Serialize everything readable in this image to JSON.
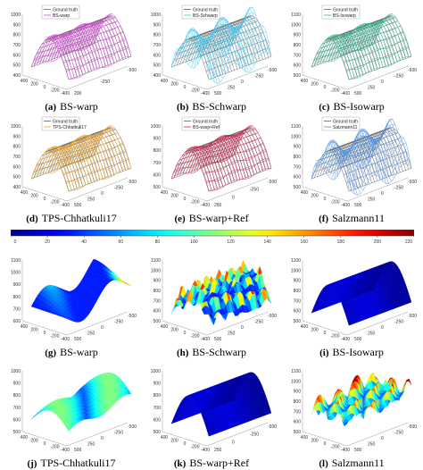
{
  "top_panels": [
    {
      "id": "a",
      "label": "(a)",
      "title": "BS-warp",
      "legend": [
        "Ground truth",
        "BS-warp"
      ],
      "color": "#e040e0",
      "zticks": [
        "1000",
        "900",
        "800",
        "700",
        "600",
        "500",
        "400"
      ],
      "xticks": [
        "400",
        "200",
        "0",
        "-200",
        "-400"
      ],
      "yticks": [
        "200",
        "-250",
        "-500"
      ]
    },
    {
      "id": "b",
      "label": "(b)",
      "title": "BS-Schwarp",
      "legend": [
        "Ground truth",
        "BS-Schwarp"
      ],
      "color": "#3cc8f0",
      "zticks": [
        "1000",
        "900",
        "800",
        "700",
        "600",
        "500",
        "400"
      ],
      "xticks": [
        "400",
        "200",
        "0",
        "-200",
        "-400"
      ],
      "yticks": [
        "500",
        "250",
        "0",
        "-250",
        "-500"
      ]
    },
    {
      "id": "c",
      "label": "(c)",
      "title": "BS-Isowarp",
      "legend": [
        "Ground truth",
        "BS-Isowarp"
      ],
      "color": "#2ab890",
      "zticks": [
        "1100",
        "1000",
        "900",
        "800",
        "700",
        "600",
        "500"
      ],
      "xticks": [
        "400",
        "200",
        "0",
        "-200",
        "-400"
      ],
      "yticks": [
        "500",
        "250",
        "0",
        "-250",
        "-500"
      ]
    },
    {
      "id": "d",
      "label": "(d)",
      "title": "TPS-Chhatkuli17",
      "legend": [
        "Ground truth",
        "TPS-Chhatkuli17"
      ],
      "color": "#f0a020",
      "zticks": [
        "1000",
        "900",
        "800",
        "700",
        "600",
        "500",
        "400"
      ],
      "xticks": [
        "400",
        "200",
        "0",
        "-200",
        "-400"
      ],
      "yticks": [
        "500",
        "250",
        "0",
        "-250",
        "-500"
      ]
    },
    {
      "id": "e",
      "label": "(e)",
      "title": "BS-warp+Ref",
      "legend": [
        "Ground truth",
        "BS-warp+Ref"
      ],
      "color": "#d02050",
      "zticks": [
        "1000",
        "900",
        "800",
        "700",
        "600",
        "500"
      ],
      "xticks": [
        "400",
        "200",
        "0",
        "-200",
        "-400"
      ],
      "yticks": [
        "250",
        "0",
        "-250",
        "-500"
      ]
    },
    {
      "id": "f",
      "label": "(f)",
      "title": "Salzmann11",
      "legend": [
        "Ground truth",
        "Salzmann11"
      ],
      "color": "#4a90e8",
      "zticks": [
        "1100",
        "1000",
        "900",
        "800",
        "700",
        "600",
        "500"
      ],
      "xticks": [
        "400",
        "200",
        "0",
        "-200",
        "-400"
      ],
      "yticks": [
        "500",
        "250",
        "0",
        "-250",
        "-500"
      ]
    }
  ],
  "colorbar": {
    "ticks": [
      "0",
      "20",
      "40",
      "60",
      "80",
      "100",
      "120",
      "140",
      "160",
      "180",
      "200",
      "220"
    ]
  },
  "bottom_panels": [
    {
      "id": "g",
      "label": "(g)",
      "title": "BS-warp",
      "style": "wavy",
      "zticks": [
        "1100",
        "1000",
        "900",
        "800",
        "700",
        "600"
      ],
      "xticks": [
        "400",
        "200",
        "0",
        "-200",
        "-400"
      ],
      "yticks": [
        "500",
        "250",
        "0",
        "-250",
        "-500"
      ]
    },
    {
      "id": "h",
      "label": "(h)",
      "title": "BS-Schwarp",
      "style": "spiky",
      "zticks": [
        "1100",
        "1000",
        "900",
        "800",
        "700",
        "600",
        "500"
      ],
      "xticks": [
        "400",
        "200",
        "0",
        "-200",
        "-400"
      ],
      "yticks": [
        "500",
        "250",
        "0",
        "-250",
        "-500"
      ]
    },
    {
      "id": "i",
      "label": "(i)",
      "title": "BS-Isowarp",
      "style": "smooth",
      "zticks": [
        "1100",
        "1000",
        "900",
        "800",
        "700",
        "600",
        "500"
      ],
      "xticks": [
        "400",
        "200",
        "0",
        "-200",
        "-400"
      ],
      "yticks": [
        "500",
        "250",
        "0",
        "-250",
        "-500"
      ]
    },
    {
      "id": "j",
      "label": "(j)",
      "title": "TPS-Chhatkuli17",
      "style": "ridge",
      "zticks": [
        "1000",
        "900",
        "800",
        "700",
        "600",
        "500"
      ],
      "xticks": [
        "400",
        "200",
        "0",
        "-200",
        "-400"
      ],
      "yticks": [
        "500",
        "250",
        "0",
        "-250",
        "-500"
      ]
    },
    {
      "id": "k",
      "label": "(k)",
      "title": "BS-warp+Ref",
      "style": "smooth",
      "zticks": [
        "1000",
        "900",
        "800",
        "700",
        "600",
        "500"
      ],
      "xticks": [
        "400",
        "200",
        "0",
        "-200",
        "-400"
      ],
      "yticks": [
        "250",
        "0",
        "-250",
        "-500"
      ]
    },
    {
      "id": "l",
      "label": "(l)",
      "title": "Salzmann11",
      "style": "chaos",
      "zticks": [
        "1100",
        "1000",
        "900",
        "800",
        "700",
        "600",
        "500"
      ],
      "xticks": [
        "400",
        "200",
        "0",
        "-200",
        "-400"
      ],
      "yticks": [
        "500",
        "250",
        "0",
        "-250",
        "-500"
      ]
    }
  ]
}
